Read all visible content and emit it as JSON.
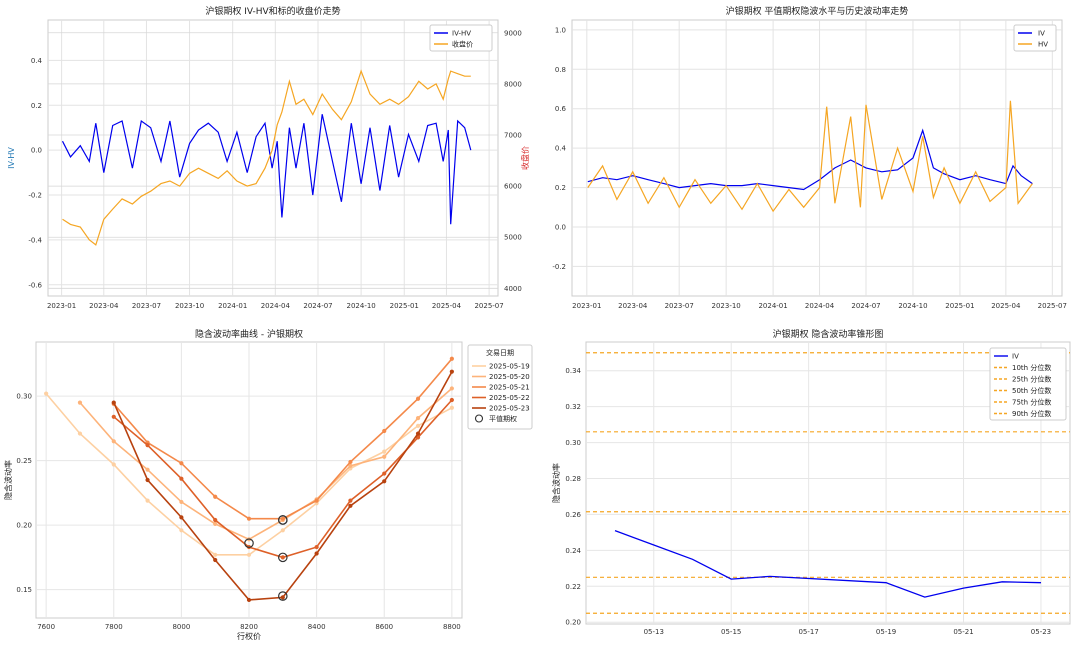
{
  "chart_data": [
    {
      "type": "line",
      "title": "沪银期权 IV-HV和标的收盘价走势",
      "ylabel_left": "IV-HV",
      "ylabel_right": "收盘价",
      "left_color": "#1f77b4",
      "right_color": "#d62728",
      "xticks": [
        "2023-01",
        "2023-04",
        "2023-07",
        "2023-10",
        "2024-01",
        "2024-04",
        "2024-07",
        "2024-10",
        "2025-01",
        "2025-04",
        "2025-07"
      ],
      "ylim_left": [
        -0.65,
        0.58
      ],
      "ylim_right": [
        3850,
        9250
      ],
      "yticks_left": [
        "-0.6",
        "-0.4",
        "-0.2",
        "0.0",
        "0.2",
        "0.4"
      ],
      "yticks_right": [
        "4000",
        "5000",
        "6000",
        "7000",
        "8000",
        "9000"
      ],
      "xlim": [
        "2022-12-03",
        "2025-07-20"
      ],
      "series": [
        {
          "name": "IV-HV",
          "color": "#0000ee",
          "x": [
            "2023-01-03",
            "2023-01-20",
            "2023-02-10",
            "2023-03-01",
            "2023-03-15",
            "2023-04-01",
            "2023-04-20",
            "2023-05-10",
            "2023-06-01",
            "2023-06-20",
            "2023-07-10",
            "2023-08-01",
            "2023-08-20",
            "2023-09-10",
            "2023-10-01",
            "2023-10-20",
            "2023-11-10",
            "2023-12-01",
            "2023-12-20",
            "2024-01-10",
            "2024-02-01",
            "2024-02-20",
            "2024-03-10",
            "2024-03-25",
            "2024-04-05",
            "2024-04-15",
            "2024-05-01",
            "2024-05-15",
            "2024-06-01",
            "2024-06-20",
            "2024-07-10",
            "2024-08-01",
            "2024-08-20",
            "2024-09-10",
            "2024-10-01",
            "2024-10-20",
            "2024-11-10",
            "2024-12-01",
            "2024-12-20",
            "2025-01-10",
            "2025-02-01",
            "2025-02-20",
            "2025-03-10",
            "2025-03-25",
            "2025-04-05",
            "2025-04-10",
            "2025-04-25",
            "2025-05-10",
            "2025-05-23"
          ],
          "y": [
            0.04,
            -0.03,
            0.02,
            -0.05,
            0.12,
            -0.1,
            0.11,
            0.13,
            -0.08,
            0.13,
            0.1,
            -0.05,
            0.13,
            -0.12,
            0.03,
            0.09,
            0.12,
            0.08,
            -0.05,
            0.08,
            -0.1,
            0.06,
            0.12,
            -0.08,
            0.04,
            -0.3,
            0.1,
            -0.08,
            0.12,
            -0.2,
            0.16,
            -0.05,
            -0.23,
            0.12,
            -0.15,
            0.1,
            -0.18,
            0.11,
            -0.12,
            0.07,
            -0.05,
            0.11,
            0.12,
            -0.05,
            0.09,
            -0.33,
            0.13,
            0.1,
            0.0
          ]
        },
        {
          "name": "收盘价",
          "color": "#f5a623",
          "x": [
            "2023-01-03",
            "2023-01-20",
            "2023-02-10",
            "2023-03-01",
            "2023-03-15",
            "2023-04-01",
            "2023-04-20",
            "2023-05-10",
            "2023-06-01",
            "2023-06-20",
            "2023-07-10",
            "2023-08-01",
            "2023-08-20",
            "2023-09-10",
            "2023-10-01",
            "2023-10-20",
            "2023-11-10",
            "2023-12-01",
            "2023-12-20",
            "2024-01-10",
            "2024-02-01",
            "2024-02-20",
            "2024-03-10",
            "2024-03-25",
            "2024-04-05",
            "2024-04-15",
            "2024-05-01",
            "2024-05-15",
            "2024-06-01",
            "2024-06-20",
            "2024-07-10",
            "2024-08-01",
            "2024-08-20",
            "2024-09-10",
            "2024-10-01",
            "2024-10-20",
            "2024-11-10",
            "2024-12-01",
            "2024-12-20",
            "2025-01-10",
            "2025-02-01",
            "2025-02-20",
            "2025-03-10",
            "2025-03-25",
            "2025-04-05",
            "2025-04-10",
            "2025-04-25",
            "2025-05-10",
            "2025-05-23"
          ],
          "y": [
            5350,
            5250,
            5200,
            4950,
            4850,
            5350,
            5550,
            5750,
            5650,
            5800,
            5900,
            6050,
            6100,
            6000,
            6250,
            6350,
            6250,
            6150,
            6300,
            6100,
            6000,
            6050,
            6350,
            6700,
            7200,
            7450,
            8050,
            7600,
            7700,
            7400,
            7800,
            7500,
            7300,
            7650,
            8250,
            7800,
            7600,
            7700,
            7600,
            7750,
            8050,
            7900,
            8000,
            7700,
            8100,
            8250,
            8200,
            8150,
            8150
          ]
        }
      ]
    },
    {
      "type": "line",
      "title": "沪银期权 平值期权隐波水平与历史波动率走势",
      "xticks": [
        "2023-01",
        "2023-04",
        "2023-07",
        "2023-10",
        "2024-01",
        "2024-04",
        "2024-07",
        "2024-10",
        "2025-01",
        "2025-04",
        "2025-07"
      ],
      "ylim": [
        -0.35,
        1.05
      ],
      "yticks": [
        "-0.2",
        "0.0",
        "0.2",
        "0.4",
        "0.6",
        "0.8",
        "1.0"
      ],
      "xlim": [
        "2022-12-03",
        "2025-07-20"
      ],
      "series": [
        {
          "name": "IV",
          "color": "#0000ee",
          "x": [
            "2023-01-03",
            "2023-02-01",
            "2023-03-01",
            "2023-04-01",
            "2023-05-01",
            "2023-06-01",
            "2023-07-01",
            "2023-08-01",
            "2023-09-01",
            "2023-10-01",
            "2023-11-01",
            "2023-12-01",
            "2024-01-01",
            "2024-02-01",
            "2024-03-01",
            "2024-04-01",
            "2024-05-01",
            "2024-06-01",
            "2024-07-01",
            "2024-08-01",
            "2024-09-01",
            "2024-10-01",
            "2024-10-20",
            "2024-11-10",
            "2024-12-01",
            "2025-01-01",
            "2025-02-01",
            "2025-03-01",
            "2025-04-01",
            "2025-04-15",
            "2025-05-01",
            "2025-05-23"
          ],
          "y": [
            0.23,
            0.25,
            0.24,
            0.26,
            0.24,
            0.22,
            0.2,
            0.21,
            0.22,
            0.21,
            0.21,
            0.22,
            0.21,
            0.2,
            0.19,
            0.24,
            0.3,
            0.34,
            0.3,
            0.28,
            0.29,
            0.35,
            0.49,
            0.3,
            0.27,
            0.24,
            0.26,
            0.24,
            0.22,
            0.31,
            0.26,
            0.22
          ]
        },
        {
          "name": "HV",
          "color": "#f5a623",
          "x": [
            "2023-01-03",
            "2023-02-01",
            "2023-03-01",
            "2023-04-01",
            "2023-05-01",
            "2023-06-01",
            "2023-07-01",
            "2023-08-01",
            "2023-09-01",
            "2023-10-01",
            "2023-11-01",
            "2023-12-01",
            "2024-01-01",
            "2024-02-01",
            "2024-03-01",
            "2024-04-01",
            "2024-04-15",
            "2024-05-01",
            "2024-06-01",
            "2024-06-20",
            "2024-07-01",
            "2024-08-01",
            "2024-09-01",
            "2024-10-01",
            "2024-10-20",
            "2024-11-10",
            "2024-12-01",
            "2025-01-01",
            "2025-02-01",
            "2025-03-01",
            "2025-04-01",
            "2025-04-10",
            "2025-04-25",
            "2025-05-23"
          ],
          "y": [
            0.2,
            0.31,
            0.14,
            0.28,
            0.12,
            0.25,
            0.1,
            0.24,
            0.12,
            0.21,
            0.09,
            0.22,
            0.08,
            0.19,
            0.1,
            0.2,
            0.61,
            0.12,
            0.56,
            0.1,
            0.62,
            0.14,
            0.4,
            0.18,
            0.46,
            0.15,
            0.3,
            0.12,
            0.28,
            0.13,
            0.2,
            0.64,
            0.12,
            0.22
          ]
        }
      ]
    },
    {
      "type": "line",
      "title": "隐含波动率曲线 - 沪银期权",
      "xlabel": "行权价",
      "ylabel": "隐含波动率",
      "xlim": [
        7570,
        8830
      ],
      "ylim": [
        0.128,
        0.342
      ],
      "xticks": [
        7600,
        7800,
        8000,
        8200,
        8400,
        8600,
        8800
      ],
      "yticks": [
        "0.15",
        "0.20",
        "0.25",
        "0.30"
      ],
      "legend_title": "交易日期",
      "atm_label": "平值期权",
      "series": [
        {
          "name": "2025-05-19",
          "color": "#fdd0a2",
          "x": [
            7600,
            7700,
            7800,
            7900,
            8000,
            8100,
            8200,
            8300,
            8400,
            8500,
            8600,
            8700,
            8800
          ],
          "y": [
            0.302,
            0.271,
            0.247,
            0.219,
            0.196,
            0.177,
            0.177,
            0.196,
            0.217,
            0.244,
            0.257,
            0.277,
            0.291
          ],
          "atm": [
            8200,
            0.186
          ]
        },
        {
          "name": "2025-05-20",
          "color": "#fdb37a",
          "x": [
            7700,
            7800,
            7900,
            8000,
            8100,
            8200,
            8300,
            8400,
            8500,
            8600,
            8700,
            8800
          ],
          "y": [
            0.295,
            0.265,
            0.243,
            0.218,
            0.201,
            0.189,
            0.204,
            0.22,
            0.246,
            0.253,
            0.283,
            0.306
          ],
          "atm": [
            8300,
            0.204
          ]
        },
        {
          "name": "2025-05-21",
          "color": "#f4894a",
          "x": [
            7800,
            7900,
            8000,
            8100,
            8200,
            8300,
            8400,
            8500,
            8600,
            8700,
            8800
          ],
          "y": [
            0.294,
            0.264,
            0.248,
            0.222,
            0.205,
            0.205,
            0.219,
            0.249,
            0.273,
            0.298,
            0.329
          ],
          "atm": [
            8300,
            0.204
          ]
        },
        {
          "name": "2025-05-22",
          "color": "#de6028",
          "x": [
            7800,
            7900,
            8000,
            8100,
            8200,
            8300,
            8400,
            8500,
            8600,
            8700,
            8800
          ],
          "y": [
            0.284,
            0.262,
            0.236,
            0.204,
            0.183,
            0.175,
            0.183,
            0.219,
            0.24,
            0.268,
            0.297
          ],
          "atm": [
            8300,
            0.175
          ]
        },
        {
          "name": "2025-05-23",
          "color": "#b8420f",
          "x": [
            7800,
            7900,
            8000,
            8100,
            8200,
            8300,
            8400,
            8500,
            8600,
            8700,
            8800
          ],
          "y": [
            0.295,
            0.235,
            0.206,
            0.173,
            0.142,
            0.144,
            0.178,
            0.215,
            0.234,
            0.271,
            0.319
          ],
          "atm": [
            8300,
            0.145
          ]
        }
      ]
    },
    {
      "type": "line",
      "title": "沪银期权 隐含波动率锥形图",
      "ylabel": "隐含波动率",
      "xlim": [
        "2025-05-11 06:00",
        "2025-05-23 18:00"
      ],
      "ylim": [
        0.199,
        0.356
      ],
      "xticks": [
        "05-13",
        "05-15",
        "05-17",
        "05-19",
        "05-21",
        "05-23"
      ],
      "yticks": [
        "0.20",
        "0.22",
        "0.24",
        "0.26",
        "0.28",
        "0.30",
        "0.32",
        "0.34"
      ],
      "series": [
        {
          "name": "IV",
          "color": "#0000ee",
          "x": [
            "2025-05-12",
            "2025-05-13",
            "2025-05-14",
            "2025-05-15",
            "2025-05-16",
            "2025-05-19",
            "2025-05-20",
            "2025-05-21",
            "2025-05-22",
            "2025-05-23"
          ],
          "y": [
            0.251,
            0.243,
            0.235,
            0.224,
            0.2255,
            0.222,
            0.214,
            0.219,
            0.2225,
            0.222
          ]
        }
      ],
      "percentiles": [
        {
          "name": "10th 分位数",
          "value": 0.205
        },
        {
          "name": "25th 分位数",
          "value": 0.225
        },
        {
          "name": "50th 分位数",
          "value": 0.2615
        },
        {
          "name": "75th 分位数",
          "value": 0.306
        },
        {
          "name": "90th 分位数",
          "value": 0.35
        }
      ],
      "percentile_color": "#f5a623"
    }
  ]
}
